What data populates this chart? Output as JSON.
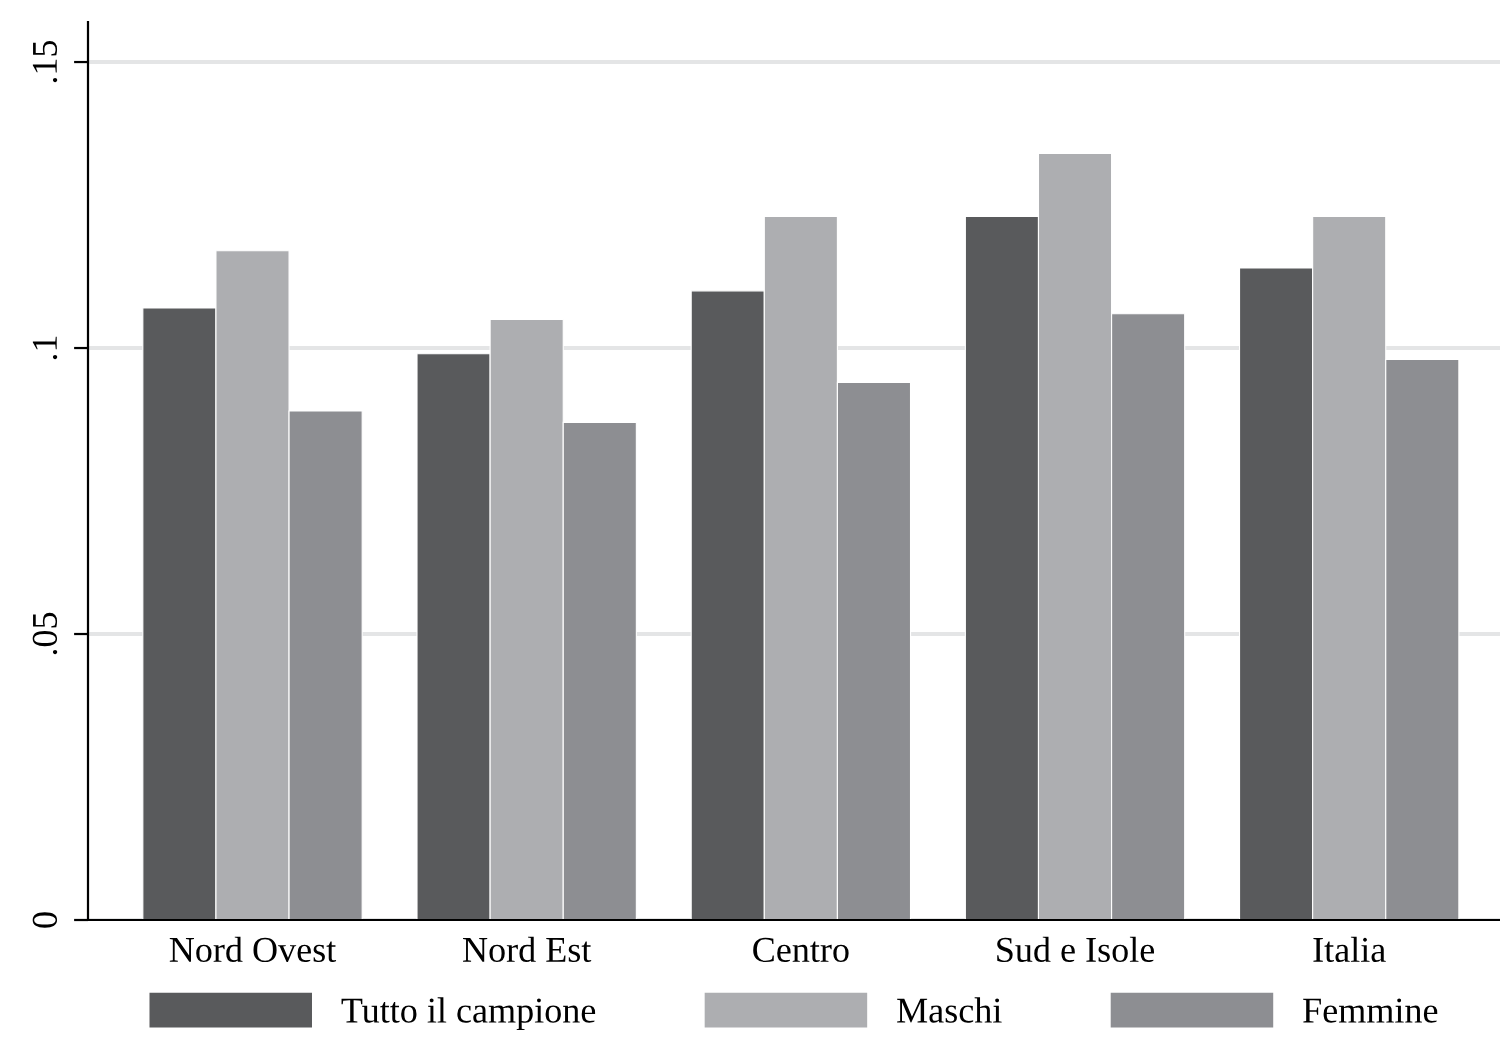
{
  "chart_data": {
    "type": "bar",
    "categories": [
      "Nord Ovest",
      "Nord Est",
      "Centro",
      "Sud e Isole",
      "Italia"
    ],
    "series": [
      {
        "name": "Tutto il campione",
        "color": "#595a5c",
        "values": [
          0.107,
          0.099,
          0.11,
          0.123,
          0.114
        ]
      },
      {
        "name": "Maschi",
        "color": "#adaeb1",
        "values": [
          0.117,
          0.105,
          0.123,
          0.134,
          0.123
        ]
      },
      {
        "name": "Femmine",
        "color": "#8d8e92",
        "values": [
          0.089,
          0.087,
          0.094,
          0.106,
          0.098
        ]
      }
    ],
    "ylim": [
      0,
      0.157
    ],
    "yticks": [
      {
        "value": 0,
        "label": "0"
      },
      {
        "value": 0.05,
        "label": ".05"
      },
      {
        "value": 0.1,
        "label": ".1"
      },
      {
        "value": 0.15,
        "label": ".15"
      }
    ],
    "grid": "y",
    "legend": "bottom"
  }
}
